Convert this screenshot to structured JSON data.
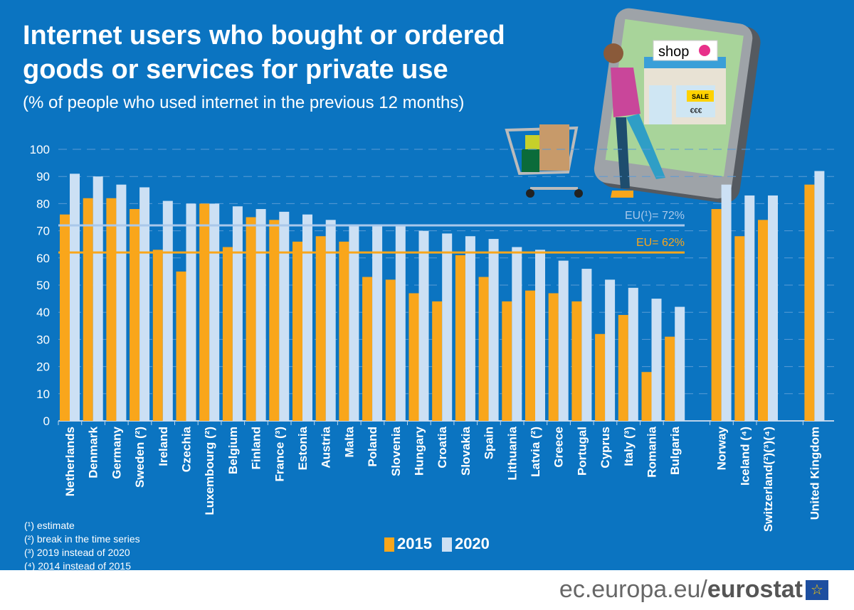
{
  "header": {
    "title": "Internet users who bought or ordered goods or services for private use",
    "subtitle": "(% of people who used internet in the previous 12 months)"
  },
  "chart_data": {
    "type": "bar",
    "title": "Internet users who bought or ordered goods or services for private use",
    "subtitle": "(% of people who used internet in the previous 12 months)",
    "ylim": [
      0,
      100
    ],
    "yticks": [
      0,
      10,
      20,
      30,
      40,
      50,
      60,
      70,
      80,
      90,
      100
    ],
    "grid": true,
    "legend_placement": "bottom",
    "categories": [
      "Netherlands",
      "Denmark",
      "Germany",
      "Sweden (²)",
      "Ireland",
      "Czechia",
      "Luxembourg (²)",
      "Belgium",
      "Finland",
      "France (³)",
      "Estonia",
      "Austria",
      "Malta",
      "Poland",
      "Slovenia",
      "Hungary",
      "Croatia",
      "Slovakia",
      "Spain",
      "Lithuania",
      "Latvia (²)",
      "Greece",
      "Portugal",
      "Cyprus",
      "Italy (³)",
      "Romania",
      "Bulgaria",
      "Norway",
      "Iceland (⁴)",
      "Switzerland(²)(³)(⁴)",
      "United Kingdom"
    ],
    "series": [
      {
        "name": "2015",
        "color": "#f9a61b",
        "values": [
          76,
          82,
          82,
          78,
          63,
          55,
          80,
          64,
          75,
          74,
          66,
          68,
          66,
          53,
          52,
          47,
          44,
          61,
          53,
          44,
          48,
          47,
          44,
          32,
          39,
          18,
          31,
          78,
          68,
          74,
          87
        ]
      },
      {
        "name": "2020",
        "color": "#cce0f4",
        "values": [
          91,
          90,
          87,
          86,
          81,
          80,
          80,
          79,
          78,
          77,
          76,
          74,
          72,
          72,
          72,
          70,
          69,
          68,
          67,
          64,
          63,
          59,
          56,
          52,
          49,
          45,
          42,
          87,
          83,
          83,
          92
        ]
      }
    ],
    "reference_lines": [
      {
        "label": "EU(¹)= 72%",
        "value": 72,
        "color": "#a9c8ea"
      },
      {
        "label": "EU= 62%",
        "value": 62,
        "color": "#f9a61b"
      }
    ]
  },
  "illustration": {
    "shop_sign": "shop",
    "sale_sign": "SALE",
    "price_sign": "€€€"
  },
  "notes": [
    "(¹) estimate",
    "(²) break in the time series",
    "(³) 2019 instead of 2020",
    "(⁴) 2014 instead of 2015"
  ],
  "footer": {
    "site": "ec.europa.eu/",
    "brand": "eurostat"
  }
}
